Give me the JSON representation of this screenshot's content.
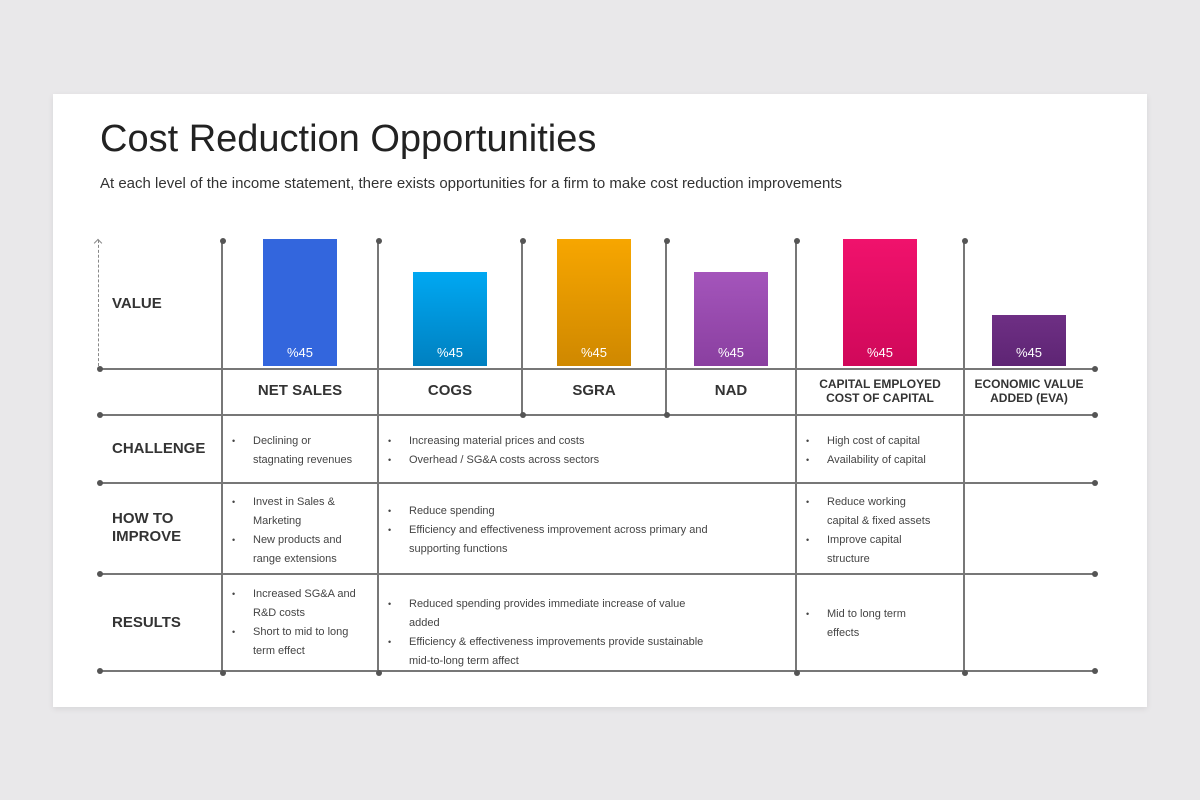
{
  "title": "Cost Reduction Opportunities",
  "subtitle": "At each level of the income statement, there exists opportunities for a firm to make cost reduction improvements",
  "row_labels": {
    "value": "VALUE",
    "challenge": "CHALLENGE",
    "how": "HOW TO IMPROVE",
    "results": "RESULTS"
  },
  "columns": [
    {
      "label": "NET SALES",
      "value_label": "%45",
      "level": 1.0,
      "color": "#3366dd",
      "color2": "#3366dd"
    },
    {
      "label": "COGS",
      "value_label": "%45",
      "level": 0.74,
      "color": "#00a8f2",
      "color2": "#0080c0"
    },
    {
      "label": "SGRA",
      "value_label": "%45",
      "level": 1.0,
      "color": "#f7a600",
      "color2": "#cf8800"
    },
    {
      "label": "NAD",
      "value_label": "%45",
      "level": 0.74,
      "color": "#a455bb",
      "color2": "#8a3fa0"
    },
    {
      "label": "CAPITAL EMPLOYED COST OF CAPITAL",
      "value_label": "%45",
      "level": 1.0,
      "color": "#f0126c",
      "color2": "#d0085a"
    },
    {
      "label": "ECONOMIC VALUE ADDED (EVA)",
      "value_label": "%45",
      "level": 0.4,
      "color": "#6e2f84",
      "color2": "#5e2574"
    }
  ],
  "cells": {
    "challenge": [
      [
        "Declining or stagnating revenues"
      ],
      [
        "Increasing material prices and costs",
        "Overhead / SG&A costs across sectors"
      ],
      [
        "High cost of capital",
        "Availability of capital"
      ]
    ],
    "how": [
      [
        "Invest in Sales & Marketing",
        "New products and range extensions"
      ],
      [
        "Reduce spending",
        "Efficiency and effectiveness improvement across primary and supporting functions"
      ],
      [
        "Reduce working capital & fixed assets",
        "Improve capital structure"
      ]
    ],
    "results": [
      [
        "Increased SG&A and R&D costs",
        "Short to mid to long term effect"
      ],
      [
        "Reduced spending provides immediate increase of value added",
        "Efficiency & effectiveness improvements provide sustainable mid-to-long term affect"
      ],
      [
        "Mid to long term effects"
      ]
    ]
  }
}
